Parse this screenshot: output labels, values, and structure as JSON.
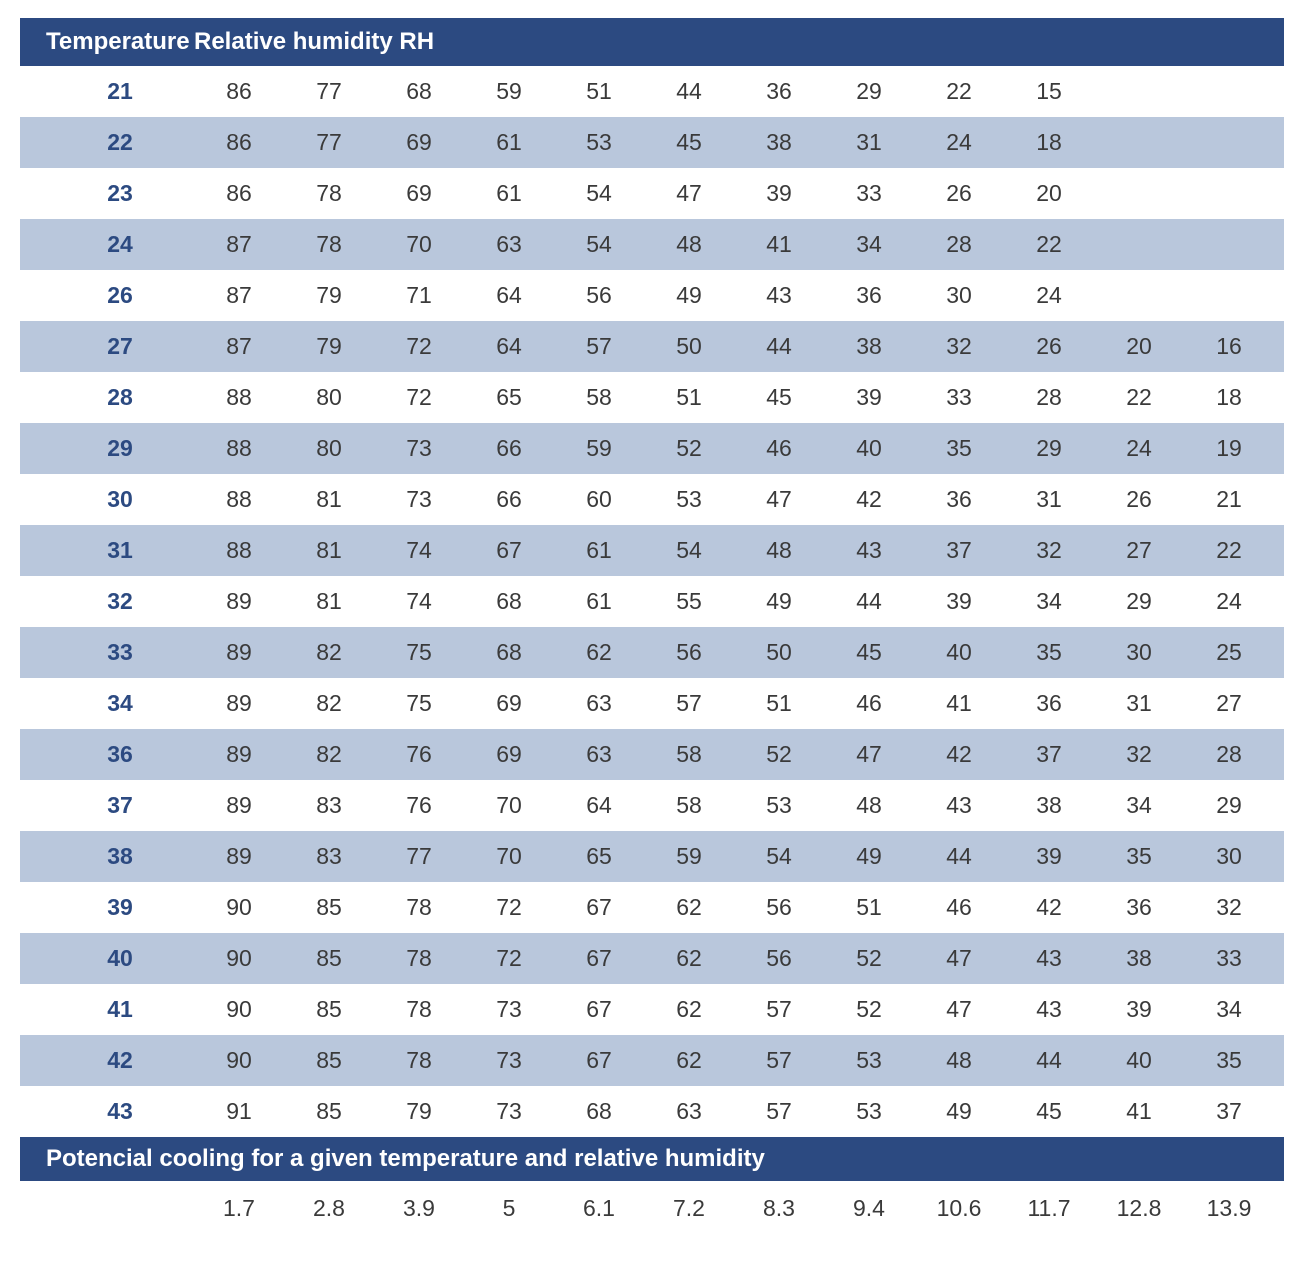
{
  "colors": {
    "header_bg": "#2c4a81",
    "header_fg": "#ffffff",
    "stripe_bg": "#b9c7dc",
    "row_bg": "#ffffff",
    "temp_text": "#2c4a81",
    "cell_text": "#3a3a3a"
  },
  "typography": {
    "header_fontsize_pt": 18,
    "header_fontweight": 700,
    "cell_fontsize_pt": 17,
    "temp_fontweight": 600
  },
  "table": {
    "type": "table",
    "col_count": 13,
    "header": {
      "temperature_label": "Temperature",
      "rh_label": "Relative humidity RH"
    },
    "rows": [
      {
        "temp": "21",
        "values": [
          "86",
          "77",
          "68",
          "59",
          "51",
          "44",
          "36",
          "29",
          "22",
          "15",
          "",
          ""
        ]
      },
      {
        "temp": "22",
        "values": [
          "86",
          "77",
          "69",
          "61",
          "53",
          "45",
          "38",
          "31",
          "24",
          "18",
          "",
          ""
        ]
      },
      {
        "temp": "23",
        "values": [
          "86",
          "78",
          "69",
          "61",
          "54",
          "47",
          "39",
          "33",
          "26",
          "20",
          "",
          ""
        ]
      },
      {
        "temp": "24",
        "values": [
          "87",
          "78",
          "70",
          "63",
          "54",
          "48",
          "41",
          "34",
          "28",
          "22",
          "",
          ""
        ]
      },
      {
        "temp": "26",
        "values": [
          "87",
          "79",
          "71",
          "64",
          "56",
          "49",
          "43",
          "36",
          "30",
          "24",
          "",
          ""
        ]
      },
      {
        "temp": "27",
        "values": [
          "87",
          "79",
          "72",
          "64",
          "57",
          "50",
          "44",
          "38",
          "32",
          "26",
          "20",
          "16"
        ]
      },
      {
        "temp": "28",
        "values": [
          "88",
          "80",
          "72",
          "65",
          "58",
          "51",
          "45",
          "39",
          "33",
          "28",
          "22",
          "18"
        ]
      },
      {
        "temp": "29",
        "values": [
          "88",
          "80",
          "73",
          "66",
          "59",
          "52",
          "46",
          "40",
          "35",
          "29",
          "24",
          "19"
        ]
      },
      {
        "temp": "30",
        "values": [
          "88",
          "81",
          "73",
          "66",
          "60",
          "53",
          "47",
          "42",
          "36",
          "31",
          "26",
          "21"
        ]
      },
      {
        "temp": "31",
        "values": [
          "88",
          "81",
          "74",
          "67",
          "61",
          "54",
          "48",
          "43",
          "37",
          "32",
          "27",
          "22"
        ]
      },
      {
        "temp": "32",
        "values": [
          "89",
          "81",
          "74",
          "68",
          "61",
          "55",
          "49",
          "44",
          "39",
          "34",
          "29",
          "24"
        ]
      },
      {
        "temp": "33",
        "values": [
          "89",
          "82",
          "75",
          "68",
          "62",
          "56",
          "50",
          "45",
          "40",
          "35",
          "30",
          "25"
        ]
      },
      {
        "temp": "34",
        "values": [
          "89",
          "82",
          "75",
          "69",
          "63",
          "57",
          "51",
          "46",
          "41",
          "36",
          "31",
          "27"
        ]
      },
      {
        "temp": "36",
        "values": [
          "89",
          "82",
          "76",
          "69",
          "63",
          "58",
          "52",
          "47",
          "42",
          "37",
          "32",
          "28"
        ]
      },
      {
        "temp": "37",
        "values": [
          "89",
          "83",
          "76",
          "70",
          "64",
          "58",
          "53",
          "48",
          "43",
          "38",
          "34",
          "29"
        ]
      },
      {
        "temp": "38",
        "values": [
          "89",
          "83",
          "77",
          "70",
          "65",
          "59",
          "54",
          "49",
          "44",
          "39",
          "35",
          "30"
        ]
      },
      {
        "temp": "39",
        "values": [
          "90",
          "85",
          "78",
          "72",
          "67",
          "62",
          "56",
          "51",
          "46",
          "42",
          "36",
          "32"
        ]
      },
      {
        "temp": "40",
        "values": [
          "90",
          "85",
          "78",
          "72",
          "67",
          "62",
          "56",
          "52",
          "47",
          "43",
          "38",
          "33"
        ]
      },
      {
        "temp": "41",
        "values": [
          "90",
          "85",
          "78",
          "73",
          "67",
          "62",
          "57",
          "52",
          "47",
          "43",
          "39",
          "34"
        ]
      },
      {
        "temp": "42",
        "values": [
          "90",
          "85",
          "78",
          "73",
          "67",
          "62",
          "57",
          "53",
          "48",
          "44",
          "40",
          "35"
        ]
      },
      {
        "temp": "43",
        "values": [
          "91",
          "85",
          "79",
          "73",
          "68",
          "63",
          "57",
          "53",
          "49",
          "45",
          "41",
          "37"
        ]
      }
    ],
    "subheader": "Potencial cooling for a given temperature and relative humidity",
    "footer_values": [
      "1.7",
      "2.8",
      "3.9",
      "5",
      "6.1",
      "7.2",
      "8.3",
      "9.4",
      "10.6",
      "11.7",
      "12.8",
      "13.9"
    ]
  }
}
